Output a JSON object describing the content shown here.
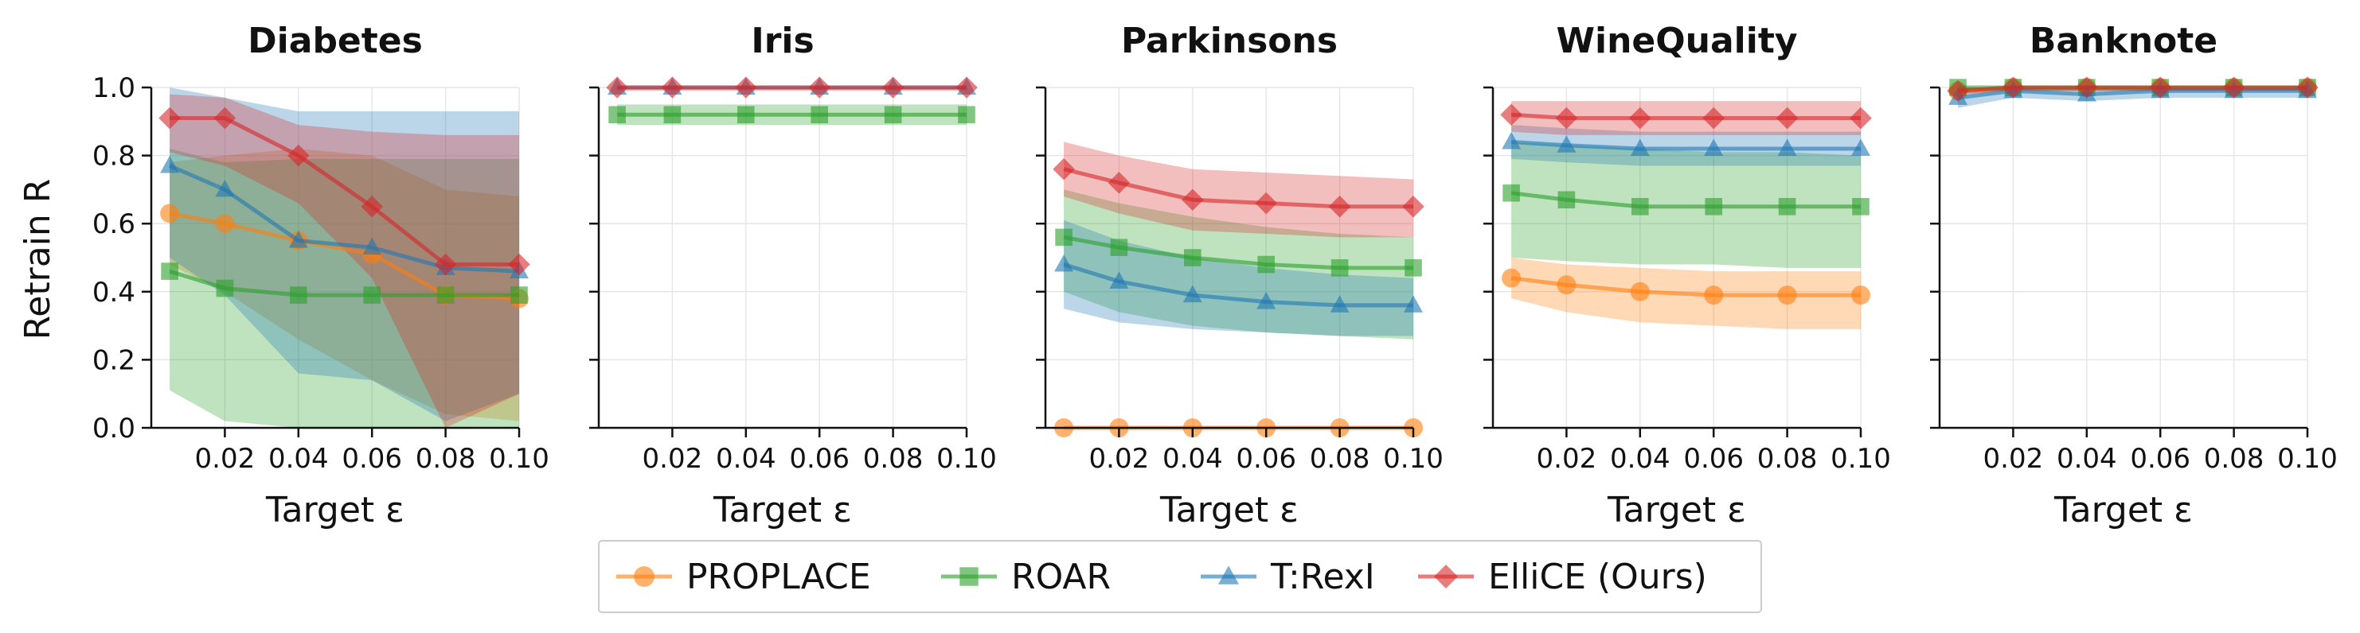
{
  "chart_data": {
    "type": "line",
    "ylabel": "Retrain R",
    "xlabel": "Target ε",
    "x": [
      0.005,
      0.02,
      0.04,
      0.06,
      0.08,
      0.1
    ],
    "xlim": [
      0.0,
      0.1
    ],
    "ylim": [
      0.0,
      1.0
    ],
    "x_ticks": [
      "0.02",
      "0.04",
      "0.06",
      "0.08",
      "0.10"
    ],
    "x_tick_values": [
      0.02,
      0.04,
      0.06,
      0.08,
      0.1
    ],
    "y_ticks": [
      "0.0",
      "0.2",
      "0.4",
      "0.6",
      "0.8",
      "1.0"
    ],
    "y_tick_values": [
      0.0,
      0.2,
      0.4,
      0.6,
      0.8,
      1.0
    ],
    "grid": true,
    "legend_position": "bottom-center",
    "methods": [
      {
        "name": "PROPLACE",
        "color": "#ff7f0e",
        "marker": "circle"
      },
      {
        "name": "ROAR",
        "color": "#2ca02c",
        "marker": "square"
      },
      {
        "name": "T:RexI",
        "color": "#1f77b4",
        "marker": "triangle"
      },
      {
        "name": "ElliCE (Ours)",
        "color": "#d62728",
        "marker": "diamond"
      }
    ],
    "panels": [
      {
        "title": "Diabetes",
        "series": [
          {
            "values": [
              0.63,
              0.6,
              0.55,
              0.51,
              0.39,
              0.38
            ],
            "lower": [
              0.48,
              0.4,
              0.26,
              0.14,
              0.04,
              0.02
            ],
            "upper": [
              0.78,
              0.8,
              0.82,
              0.8,
              0.7,
              0.68
            ]
          },
          {
            "values": [
              0.46,
              0.41,
              0.39,
              0.39,
              0.39,
              0.39
            ],
            "lower": [
              0.11,
              0.02,
              0.0,
              0.0,
              0.0,
              0.0
            ],
            "upper": [
              0.82,
              0.78,
              0.79,
              0.79,
              0.79,
              0.79
            ]
          },
          {
            "values": [
              0.77,
              0.7,
              0.55,
              0.53,
              0.47,
              0.46
            ],
            "lower": [
              0.5,
              0.39,
              0.16,
              0.14,
              0.02,
              0.1
            ],
            "upper": [
              1.0,
              0.97,
              0.93,
              0.93,
              0.93,
              0.93
            ]
          },
          {
            "values": [
              0.91,
              0.91,
              0.8,
              0.65,
              0.48,
              0.48
            ],
            "lower": [
              0.81,
              0.77,
              0.66,
              0.44,
              0.0,
              0.1
            ],
            "upper": [
              0.98,
              0.97,
              0.89,
              0.87,
              0.86,
              0.86
            ]
          }
        ]
      },
      {
        "title": "Iris",
        "series": [
          {
            "values": [
              null,
              null,
              null,
              null,
              null,
              null
            ],
            "lower": [
              null,
              null,
              null,
              null,
              null,
              null
            ],
            "upper": [
              null,
              null,
              null,
              null,
              null,
              null
            ]
          },
          {
            "values": [
              0.92,
              0.92,
              0.92,
              0.92,
              0.92,
              0.92
            ],
            "lower": [
              0.89,
              0.89,
              0.89,
              0.89,
              0.89,
              0.89
            ],
            "upper": [
              0.95,
              0.95,
              0.95,
              0.95,
              0.95,
              0.95
            ]
          },
          {
            "values": [
              1.0,
              1.0,
              1.0,
              1.0,
              1.0,
              1.0
            ],
            "lower": [
              1.0,
              1.0,
              1.0,
              1.0,
              1.0,
              1.0
            ],
            "upper": [
              1.0,
              1.0,
              1.0,
              1.0,
              1.0,
              1.0
            ]
          },
          {
            "values": [
              1.0,
              1.0,
              1.0,
              1.0,
              1.0,
              1.0
            ],
            "lower": [
              0.99,
              0.99,
              0.99,
              0.99,
              0.99,
              0.99
            ],
            "upper": [
              1.0,
              1.0,
              1.0,
              1.0,
              1.0,
              1.0
            ]
          }
        ]
      },
      {
        "title": "Parkinsons",
        "series": [
          {
            "values": [
              0.0,
              0.0,
              0.0,
              0.0,
              0.0,
              0.0
            ],
            "lower": [
              0.0,
              0.0,
              0.0,
              0.0,
              0.0,
              0.0
            ],
            "upper": [
              0.0,
              0.0,
              0.0,
              0.0,
              0.0,
              0.0
            ]
          },
          {
            "values": [
              0.56,
              0.53,
              0.5,
              0.48,
              0.47,
              0.47
            ],
            "lower": [
              0.4,
              0.34,
              0.3,
              0.28,
              0.27,
              0.26
            ],
            "upper": [
              0.7,
              0.66,
              0.62,
              0.59,
              0.57,
              0.56
            ]
          },
          {
            "values": [
              0.48,
              0.43,
              0.39,
              0.37,
              0.36,
              0.36
            ],
            "lower": [
              0.35,
              0.31,
              0.29,
              0.28,
              0.27,
              0.27
            ],
            "upper": [
              0.61,
              0.55,
              0.5,
              0.47,
              0.45,
              0.44
            ]
          },
          {
            "values": [
              0.76,
              0.72,
              0.67,
              0.66,
              0.65,
              0.65
            ],
            "lower": [
              0.68,
              0.63,
              0.58,
              0.57,
              0.56,
              0.56
            ],
            "upper": [
              0.84,
              0.8,
              0.76,
              0.75,
              0.74,
              0.73
            ]
          }
        ]
      },
      {
        "title": "WineQuality",
        "series": [
          {
            "values": [
              0.44,
              0.42,
              0.4,
              0.39,
              0.39,
              0.39
            ],
            "lower": [
              0.38,
              0.34,
              0.31,
              0.3,
              0.29,
              0.29
            ],
            "upper": [
              0.5,
              0.48,
              0.47,
              0.46,
              0.46,
              0.46
            ]
          },
          {
            "values": [
              0.69,
              0.67,
              0.65,
              0.65,
              0.65,
              0.65
            ],
            "lower": [
              0.5,
              0.49,
              0.48,
              0.48,
              0.47,
              0.47
            ],
            "upper": [
              0.84,
              0.83,
              0.82,
              0.81,
              0.81,
              0.8
            ]
          },
          {
            "values": [
              0.84,
              0.83,
              0.82,
              0.82,
              0.82,
              0.82
            ],
            "lower": [
              0.79,
              0.78,
              0.77,
              0.77,
              0.77,
              0.77
            ],
            "upper": [
              0.89,
              0.88,
              0.87,
              0.87,
              0.87,
              0.87
            ]
          },
          {
            "values": [
              0.92,
              0.91,
              0.91,
              0.91,
              0.91,
              0.91
            ],
            "lower": [
              0.87,
              0.86,
              0.86,
              0.86,
              0.86,
              0.86
            ],
            "upper": [
              0.96,
              0.96,
              0.96,
              0.96,
              0.96,
              0.96
            ]
          }
        ]
      },
      {
        "title": "Banknote",
        "series": [
          {
            "values": [
              0.99,
              1.0,
              1.0,
              1.0,
              1.0,
              1.0
            ],
            "lower": [
              0.98,
              0.99,
              0.99,
              0.99,
              0.99,
              0.99
            ],
            "upper": [
              1.0,
              1.0,
              1.0,
              1.0,
              1.0,
              1.0
            ]
          },
          {
            "values": [
              1.0,
              1.0,
              1.0,
              1.0,
              1.0,
              1.0
            ],
            "lower": [
              0.99,
              0.99,
              0.99,
              0.99,
              0.99,
              0.99
            ],
            "upper": [
              1.0,
              1.0,
              1.0,
              1.0,
              1.0,
              1.0
            ]
          },
          {
            "values": [
              0.97,
              0.99,
              0.98,
              0.99,
              0.99,
              0.99
            ],
            "lower": [
              0.94,
              0.97,
              0.96,
              0.97,
              0.97,
              0.97
            ],
            "upper": [
              1.0,
              1.0,
              1.0,
              1.0,
              1.0,
              1.0
            ]
          },
          {
            "values": [
              0.99,
              1.0,
              1.0,
              1.0,
              1.0,
              1.0
            ],
            "lower": [
              0.98,
              0.99,
              0.99,
              0.99,
              0.99,
              0.99
            ],
            "upper": [
              1.0,
              1.0,
              1.0,
              1.0,
              1.0,
              1.0
            ]
          }
        ]
      }
    ]
  }
}
